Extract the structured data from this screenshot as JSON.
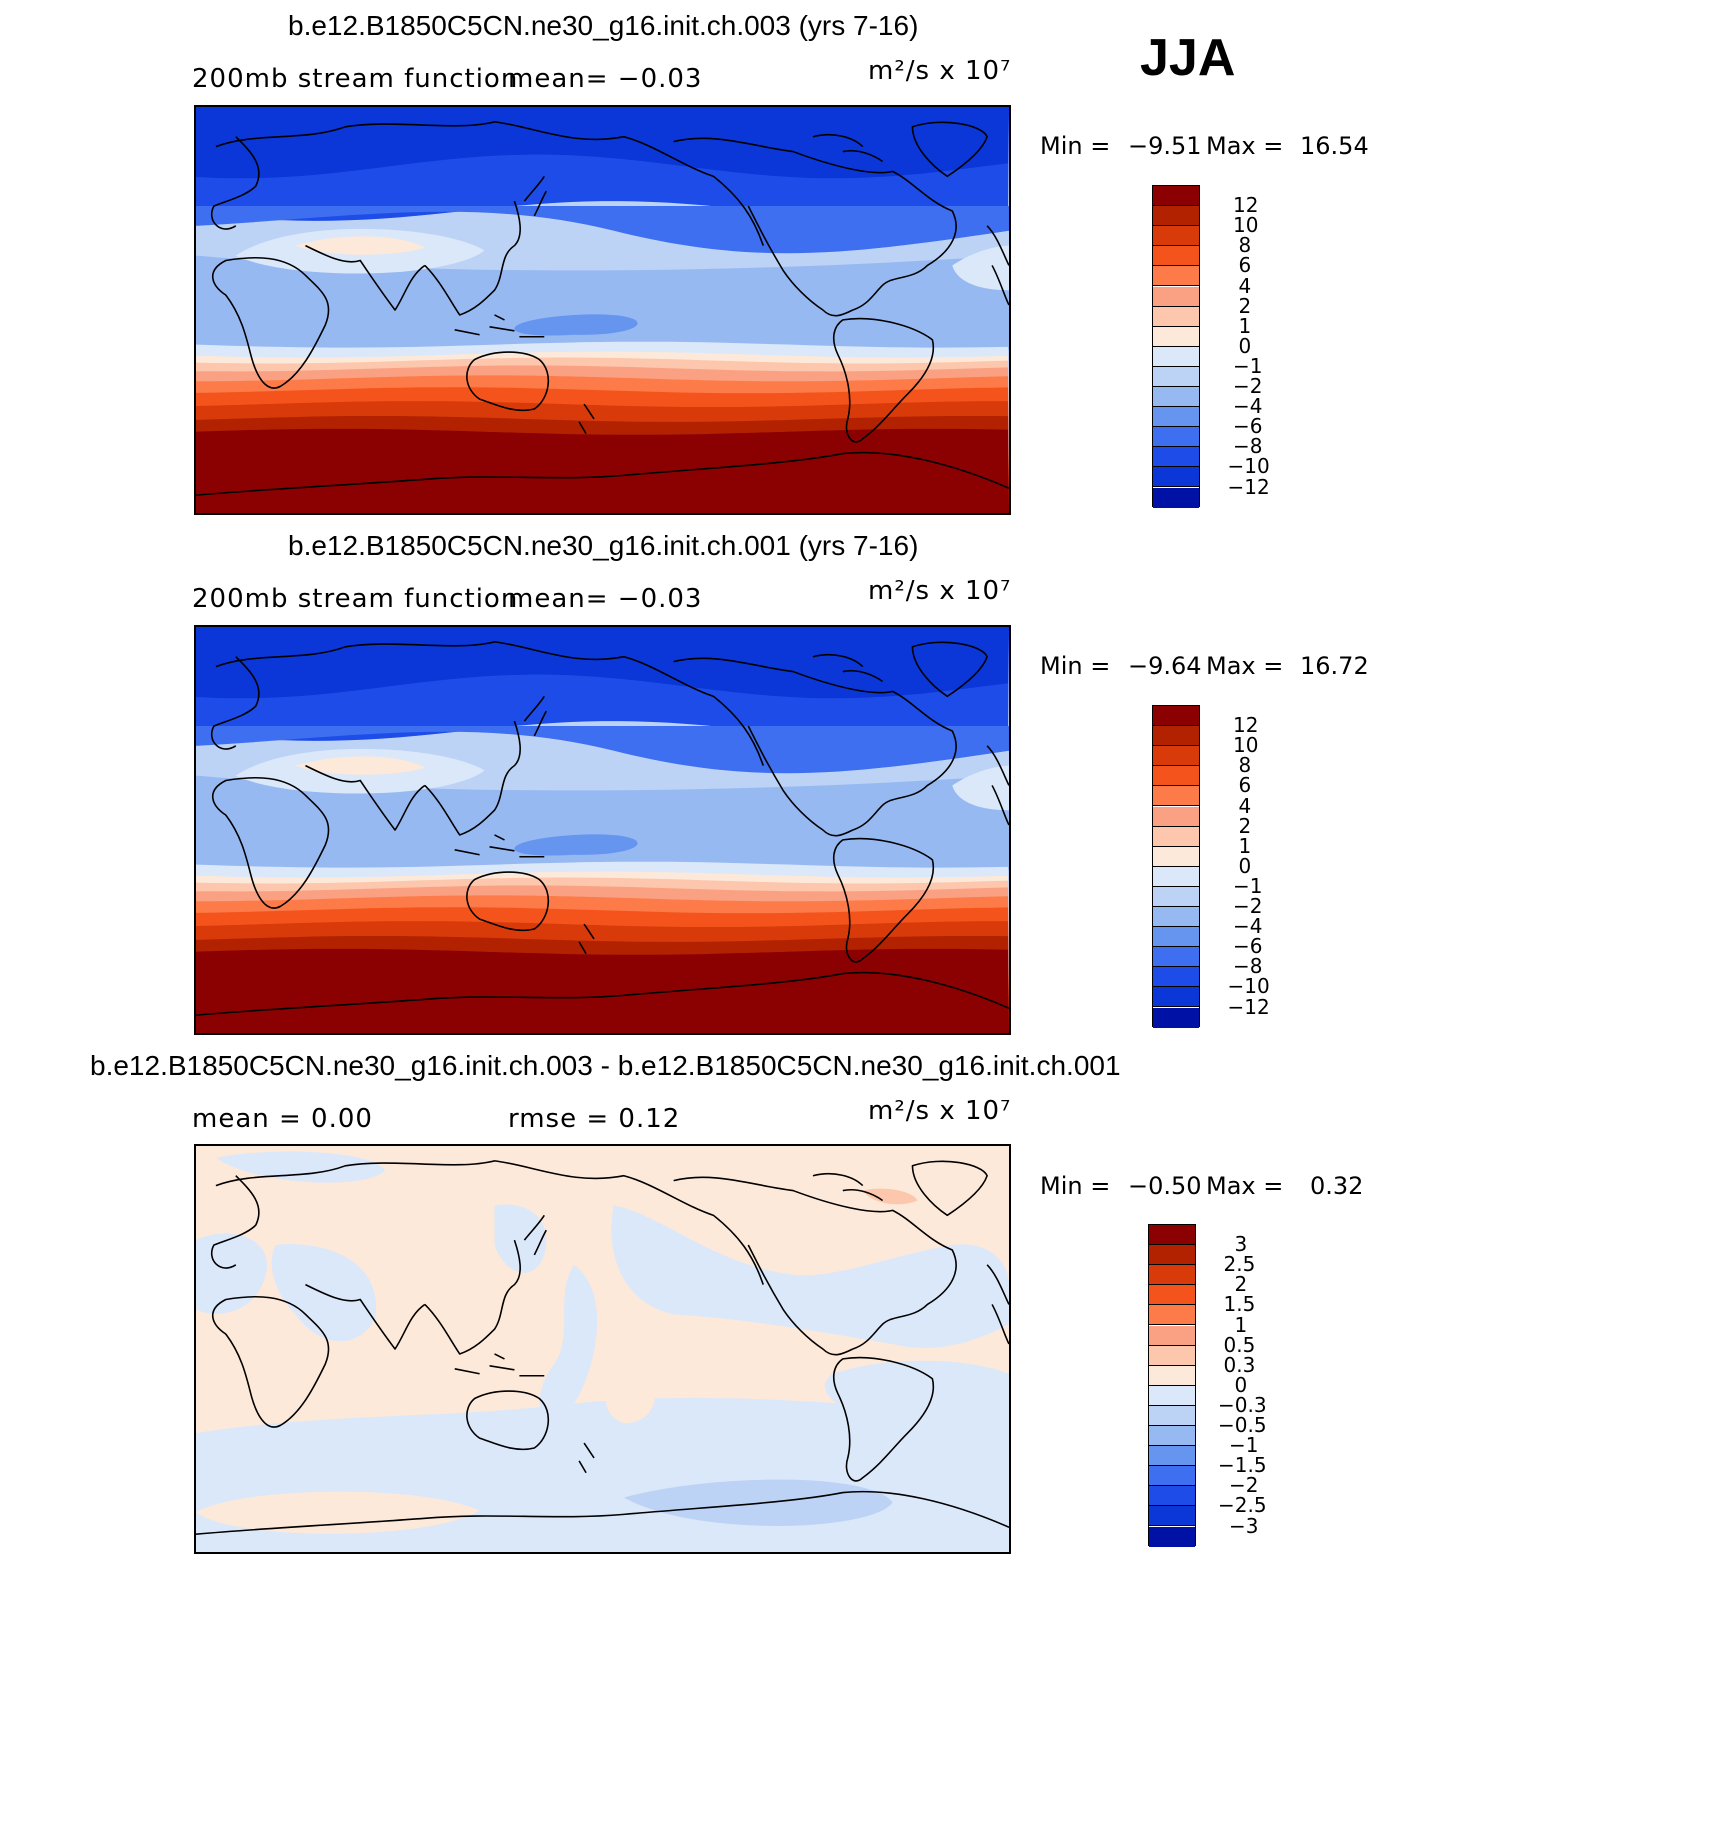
{
  "season": "JJA",
  "panels": [
    {
      "title": "b.e12.B1850C5CN.ne30_g16.init.ch.003 (yrs 7-16)",
      "subtitle_left": "200mb stream function",
      "subtitle_mid": "mean=  −0.03",
      "units": "m²/s x 10⁷",
      "min_label": "Min =",
      "min_value": "−9.51",
      "max_label": "Max =",
      "max_value": "16.54",
      "field": "climate",
      "colorbar": {
        "colors": [
          "#8b0000",
          "#b22200",
          "#d83a0a",
          "#f4541c",
          "#fc7b48",
          "#fba183",
          "#fcc7ac",
          "#fde9d9",
          "#dbe8fa",
          "#bdd3f6",
          "#97b9f2",
          "#6695ef",
          "#3e6ff0",
          "#1e4ce8",
          "#0b36d8",
          "#0011a5"
        ],
        "labels": [
          "12",
          "10",
          "8",
          "6",
          "4",
          "2",
          "1",
          "0",
          "−1",
          "−2",
          "−4",
          "−6",
          "−8",
          "−10",
          "−12"
        ]
      }
    },
    {
      "title": "b.e12.B1850C5CN.ne30_g16.init.ch.001 (yrs 7-16)",
      "subtitle_left": "200mb stream function",
      "subtitle_mid": "mean=  −0.03",
      "units": "m²/s x 10⁷",
      "min_label": "Min =",
      "min_value": "−9.64",
      "max_label": "Max =",
      "max_value": "16.72",
      "field": "climate",
      "colorbar": {
        "colors": [
          "#8b0000",
          "#b22200",
          "#d83a0a",
          "#f4541c",
          "#fc7b48",
          "#fba183",
          "#fcc7ac",
          "#fde9d9",
          "#dbe8fa",
          "#bdd3f6",
          "#97b9f2",
          "#6695ef",
          "#3e6ff0",
          "#1e4ce8",
          "#0b36d8",
          "#0011a5"
        ],
        "labels": [
          "12",
          "10",
          "8",
          "6",
          "4",
          "2",
          "1",
          "0",
          "−1",
          "−2",
          "−4",
          "−6",
          "−8",
          "−10",
          "−12"
        ]
      }
    },
    {
      "title": "b.e12.B1850C5CN.ne30_g16.init.ch.003 - b.e12.B1850C5CN.ne30_g16.init.ch.001",
      "subtitle_left": "mean =    0.00",
      "subtitle_mid": "rmse =    0.12",
      "units": "m²/s x 10⁷",
      "min_label": "Min =",
      "min_value": "−0.50",
      "max_label": "Max =",
      "max_value": "0.32",
      "field": "difference",
      "colorbar": {
        "colors": [
          "#8b0000",
          "#b22200",
          "#d83a0a",
          "#f4541c",
          "#fc7b48",
          "#fba183",
          "#fcc7ac",
          "#fde9d9",
          "#dbe8fa",
          "#bdd3f6",
          "#97b9f2",
          "#6695ef",
          "#3e6ff0",
          "#1e4ce8",
          "#0b36d8",
          "#0011a5"
        ],
        "labels": [
          "3",
          "2.5",
          "2",
          "1.5",
          "1",
          "0.5",
          "0.3",
          "0",
          "−0.3",
          "−0.5",
          "−1",
          "−1.5",
          "−2",
          "−2.5",
          "−3"
        ]
      }
    }
  ]
}
